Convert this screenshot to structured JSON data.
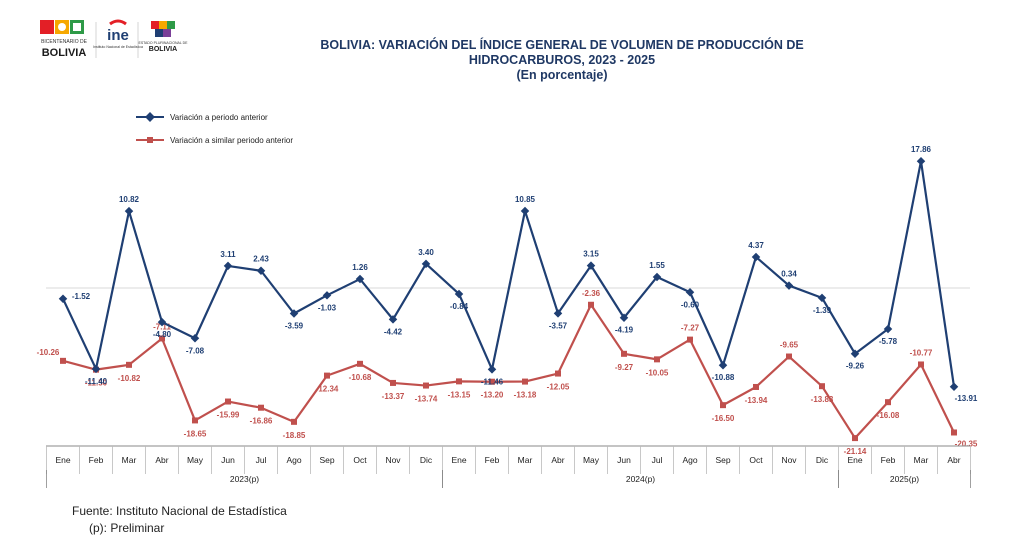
{
  "logos": {
    "left_caption_1": "BICENTENARIO DE",
    "left_caption_2": "BOLIVIA",
    "ine_mark": "ine",
    "ine_caption": "Instituto Nacional de Estadística",
    "right_caption_1": "ESTADO PLURINACIONAL DE",
    "right_caption_2": "BOLIVIA"
  },
  "title_lines": [
    "BOLIVIA: VARIACIÓN DEL ÍNDICE GENERAL DE VOLUMEN DE PRODUCCIÓN DE",
    "HIDROCARBUROS, 2023 - 2025",
    "(En porcentaje)"
  ],
  "source": {
    "line1": "Fuente: Instituto Nacional de Estadística",
    "line2": "(p): Preliminar"
  },
  "colors": {
    "series1": "#1f3f73",
    "series2": "#c0504d",
    "title": "#1f3864"
  },
  "chart_data": {
    "type": "line",
    "title": "BOLIVIA: VARIACIÓN DEL ÍNDICE GENERAL DE VOLUMEN DE PRODUCCIÓN DE HIDROCARBUROS, 2023 - 2025",
    "subtitle": "(En porcentaje)",
    "categories": [
      "Ene",
      "Feb",
      "Mar",
      "Abr",
      "May",
      "Jun",
      "Jul",
      "Ago",
      "Sep",
      "Oct",
      "Nov",
      "Dic",
      "Ene",
      "Feb",
      "Mar",
      "Abr",
      "May",
      "Jun",
      "Jul",
      "Ago",
      "Sep",
      "Oct",
      "Nov",
      "Dic",
      "Ene",
      "Feb",
      "Mar",
      "Abr"
    ],
    "groups": [
      {
        "label": "2023(p)",
        "start": 0,
        "end": 11
      },
      {
        "label": "2024(p)",
        "start": 12,
        "end": 23
      },
      {
        "label": "2025(p)",
        "start": 24,
        "end": 27
      }
    ],
    "series": [
      {
        "name": "Variación a periodo anterior",
        "marker": "diamond",
        "values": [
          -1.52,
          -11.4,
          10.82,
          -4.8,
          -7.08,
          3.11,
          2.43,
          -3.59,
          -1.03,
          1.26,
          -4.42,
          3.4,
          -0.84,
          -11.46,
          10.85,
          -3.57,
          3.15,
          -4.19,
          1.55,
          -0.6,
          -10.88,
          4.37,
          0.34,
          -1.39,
          -9.26,
          -5.78,
          17.86,
          -13.91
        ],
        "labels": [
          "-1.52",
          "-11.40",
          "10.82",
          "-4.80",
          "-7.08",
          "3.11",
          "2.43",
          "-3.59",
          "-1.03",
          "1.26",
          "-4.42",
          "3.40",
          "-0.84",
          "-11.46",
          "10.85",
          "-3.57",
          "3.15",
          "-4.19",
          "1.55",
          "-0.60",
          "-10.88",
          "4.37",
          "0.34",
          "-1.39",
          "-9.26",
          "-5.78",
          "17.86",
          "-13.91"
        ]
      },
      {
        "name": "Variación a similar periodo anterior",
        "marker": "square",
        "values": [
          -10.26,
          -11.5,
          -10.82,
          -7.11,
          -18.65,
          -15.99,
          -16.86,
          -18.85,
          -12.34,
          -10.68,
          -13.37,
          -13.74,
          -13.15,
          -13.2,
          -13.18,
          -12.05,
          -2.36,
          -9.27,
          -10.05,
          -7.27,
          -16.5,
          -13.94,
          -9.65,
          -13.83,
          -21.14,
          -16.08,
          -10.77,
          -20.35
        ],
        "labels": [
          "-10.26",
          "-11.50",
          "-10.82",
          "-7.11",
          "-18.65",
          "-15.99",
          "-16.86",
          "-18.85",
          "-12.34",
          "-10.68",
          "-13.37",
          "-13.74",
          "-13.15",
          "-13.20",
          "-13.18",
          "-12.05",
          "-2.36",
          "-9.27",
          "-10.05",
          "-7.27",
          "-16.50",
          "-13.94",
          "-9.65",
          "-13.83",
          "-21.14",
          "-16.08",
          "-10.77",
          "-20.35"
        ]
      }
    ],
    "legend_position": "top-left",
    "grid": false
  }
}
